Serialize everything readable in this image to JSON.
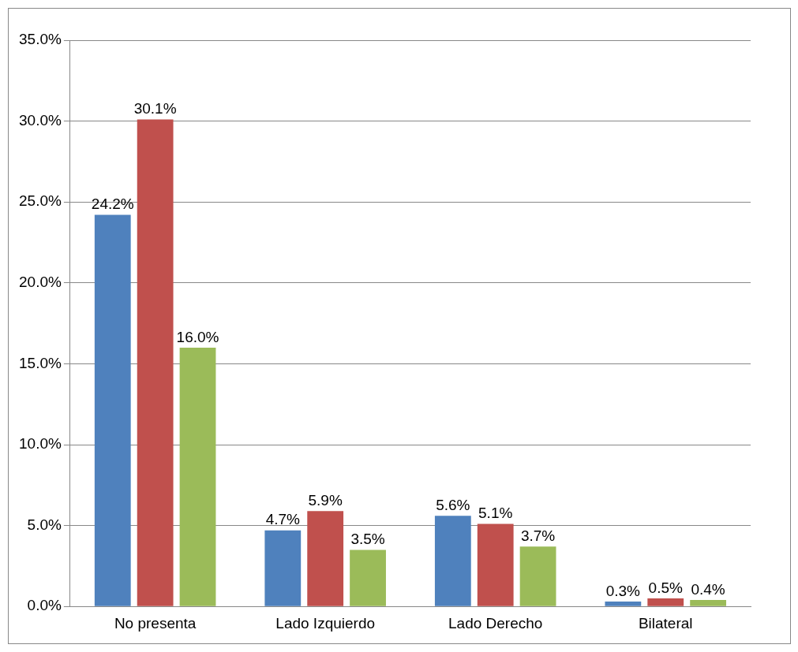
{
  "chart_data": {
    "type": "bar",
    "categories": [
      "No presenta",
      "Lado Izquierdo",
      "Lado Derecho",
      "Bilateral"
    ],
    "series": [
      {
        "color": "#4f81bd",
        "values": [
          24.2,
          4.7,
          5.6,
          0.3
        ],
        "value_labels": [
          "24.2%",
          "4.7%",
          "5.6%",
          "0.3%"
        ]
      },
      {
        "color": "#c0504d",
        "values": [
          30.1,
          5.9,
          5.1,
          0.5
        ],
        "value_labels": [
          "30.1%",
          "5.9%",
          "5.1%",
          "0.5%"
        ]
      },
      {
        "color": "#9bbb59",
        "values": [
          16.0,
          3.5,
          3.7,
          0.4
        ],
        "value_labels": [
          "16.0%",
          "3.5%",
          "3.7%",
          "0.4%"
        ]
      }
    ],
    "ylim": [
      0,
      35
    ],
    "yticks": [
      {
        "value": 0,
        "label": "0.0%"
      },
      {
        "value": 5,
        "label": "5.0%"
      },
      {
        "value": 10,
        "label": "10.0%"
      },
      {
        "value": 15,
        "label": "15.0%"
      },
      {
        "value": 20,
        "label": "20.0%"
      },
      {
        "value": 25,
        "label": "25.0%"
      },
      {
        "value": 30,
        "label": "30.0%"
      },
      {
        "value": 35,
        "label": "35.0%"
      }
    ],
    "grid": "y",
    "legend": false
  }
}
